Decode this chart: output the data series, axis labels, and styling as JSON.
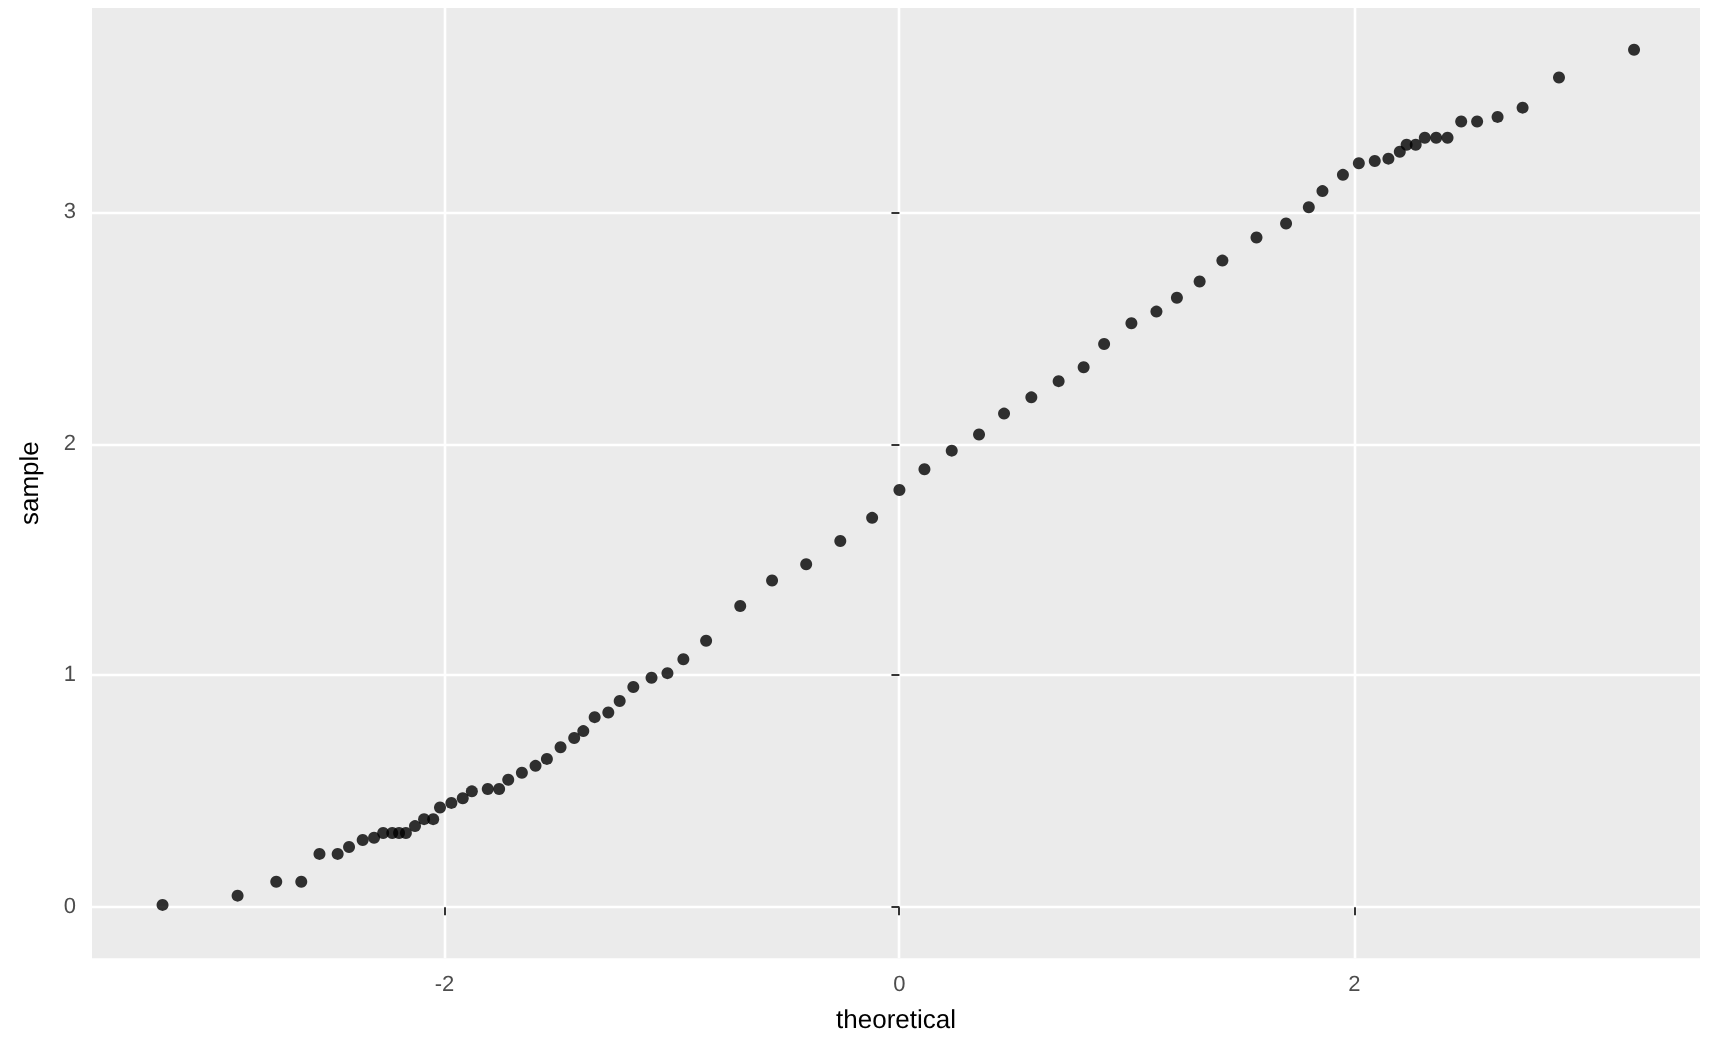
{
  "chart_data": {
    "type": "scatter",
    "xlabel": "theoretical",
    "ylabel": "sample",
    "xlim": [
      -3.55,
      3.52
    ],
    "ylim": [
      -0.22,
      3.88
    ],
    "xticks": [
      -2,
      0,
      2
    ],
    "yticks": [
      0,
      1,
      2,
      3
    ],
    "grid": true,
    "marker": "circle",
    "series": [
      {
        "color": "#000000",
        "x": [
          -3.24,
          -2.91,
          -2.74,
          -2.63,
          -2.55,
          -2.47,
          -2.42,
          -2.36,
          -2.31,
          -2.27,
          -2.23,
          -2.2,
          -2.17,
          -2.13,
          -2.09,
          -2.05,
          -2.02,
          -1.97,
          -1.92,
          -1.88,
          -1.81,
          -1.76,
          -1.72,
          -1.66,
          -1.6,
          -1.55,
          -1.49,
          -1.43,
          -1.39,
          -1.34,
          -1.28,
          -1.23,
          -1.17,
          -1.09,
          -1.02,
          -0.95,
          -0.85,
          -0.7,
          -0.56,
          -0.41,
          -0.26,
          -0.12,
          0.0,
          0.11,
          0.23,
          0.35,
          0.46,
          0.58,
          0.7,
          0.81,
          0.9,
          1.02,
          1.13,
          1.22,
          1.32,
          1.42,
          1.57,
          1.7,
          1.8,
          1.86,
          1.95,
          2.02,
          2.09,
          2.15,
          2.2,
          2.23,
          2.27,
          2.31,
          2.36,
          2.41,
          2.47,
          2.54,
          2.63,
          2.74,
          2.9,
          3.23
        ],
        "values": [
          0.01,
          0.05,
          0.11,
          0.11,
          0.23,
          0.23,
          0.26,
          0.29,
          0.3,
          0.32,
          0.32,
          0.32,
          0.32,
          0.35,
          0.38,
          0.38,
          0.43,
          0.45,
          0.47,
          0.5,
          0.51,
          0.51,
          0.55,
          0.58,
          0.61,
          0.64,
          0.69,
          0.73,
          0.76,
          0.82,
          0.84,
          0.89,
          0.95,
          0.99,
          1.01,
          1.07,
          1.15,
          1.3,
          1.41,
          1.48,
          1.58,
          1.68,
          1.8,
          1.89,
          1.97,
          2.04,
          2.13,
          2.2,
          2.27,
          2.33,
          2.43,
          2.52,
          2.57,
          2.63,
          2.7,
          2.79,
          2.89,
          2.95,
          3.02,
          3.09,
          3.16,
          3.21,
          3.22,
          3.23,
          3.26,
          3.29,
          3.29,
          3.32,
          3.32,
          3.32,
          3.39,
          3.39,
          3.41,
          3.45,
          3.58,
          3.7
        ]
      }
    ]
  }
}
